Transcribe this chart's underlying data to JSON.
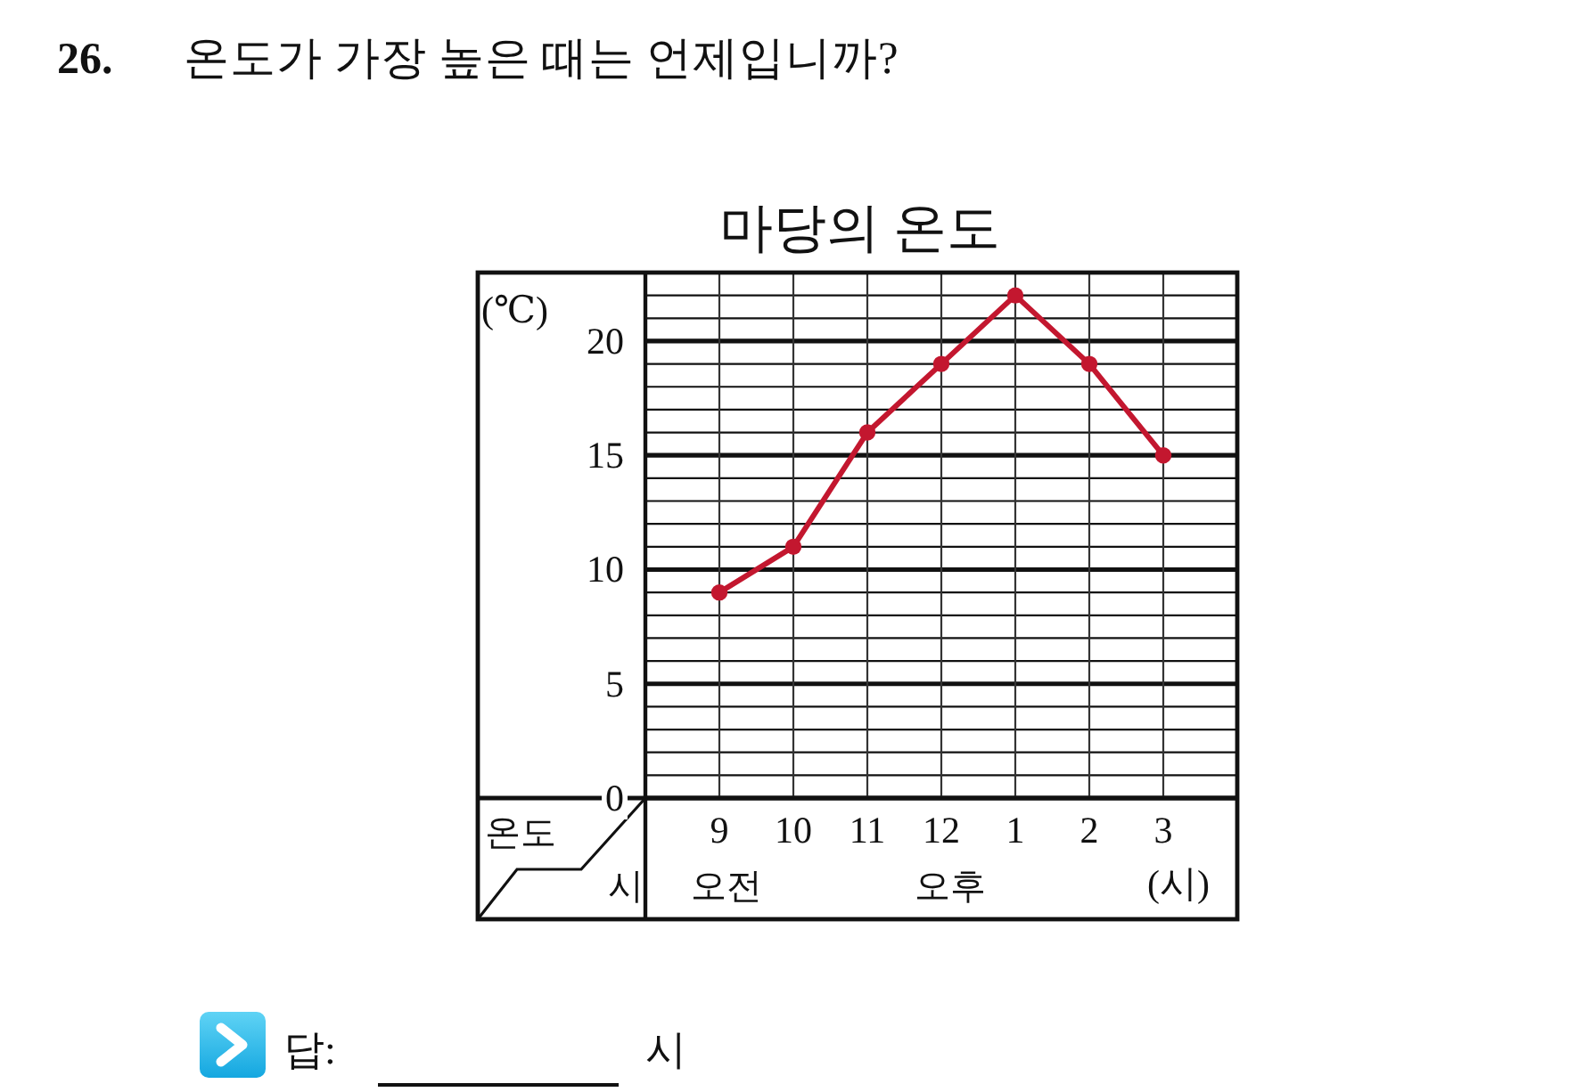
{
  "chart_data": {
    "type": "line",
    "title": "마당의 온도",
    "ylabel": "(℃)",
    "xlabel": "(시)",
    "categories": [
      "9",
      "10",
      "11",
      "12",
      "1",
      "2",
      "3"
    ],
    "values": [
      9,
      11,
      16,
      19,
      22,
      19,
      15
    ],
    "color": "#c3172f",
    "marker": "circle",
    "line_style": "solid",
    "ylim": [
      0,
      23
    ],
    "yticks": [
      0,
      {
        "value": 1,
        "label": null
      },
      {
        "value": 2,
        "label": null
      },
      {
        "value": 3,
        "label": null
      },
      {
        "value": 4,
        "label": null
      },
      5,
      {
        "value": 6,
        "label": null
      },
      {
        "value": 7,
        "label": null
      },
      {
        "value": 8,
        "label": null
      },
      {
        "value": 9,
        "label": null
      },
      10,
      {
        "value": 11,
        "label": null
      },
      {
        "value": 12,
        "label": null
      },
      {
        "value": 13,
        "label": null
      },
      {
        "value": 14,
        "label": null
      },
      15,
      {
        "value": 16,
        "label": null
      },
      {
        "value": 17,
        "label": null
      },
      {
        "value": 18,
        "label": null
      },
      {
        "value": 19,
        "label": null
      },
      20,
      {
        "value": 21,
        "label": null
      },
      {
        "value": 22,
        "label": null
      }
    ],
    "grid": true,
    "annotations": [
      "26.",
      "온도가 가장 높은 때는 언제입니까?",
      "온도",
      "시",
      "오전",
      "오후",
      "답:",
      "시"
    ]
  }
}
